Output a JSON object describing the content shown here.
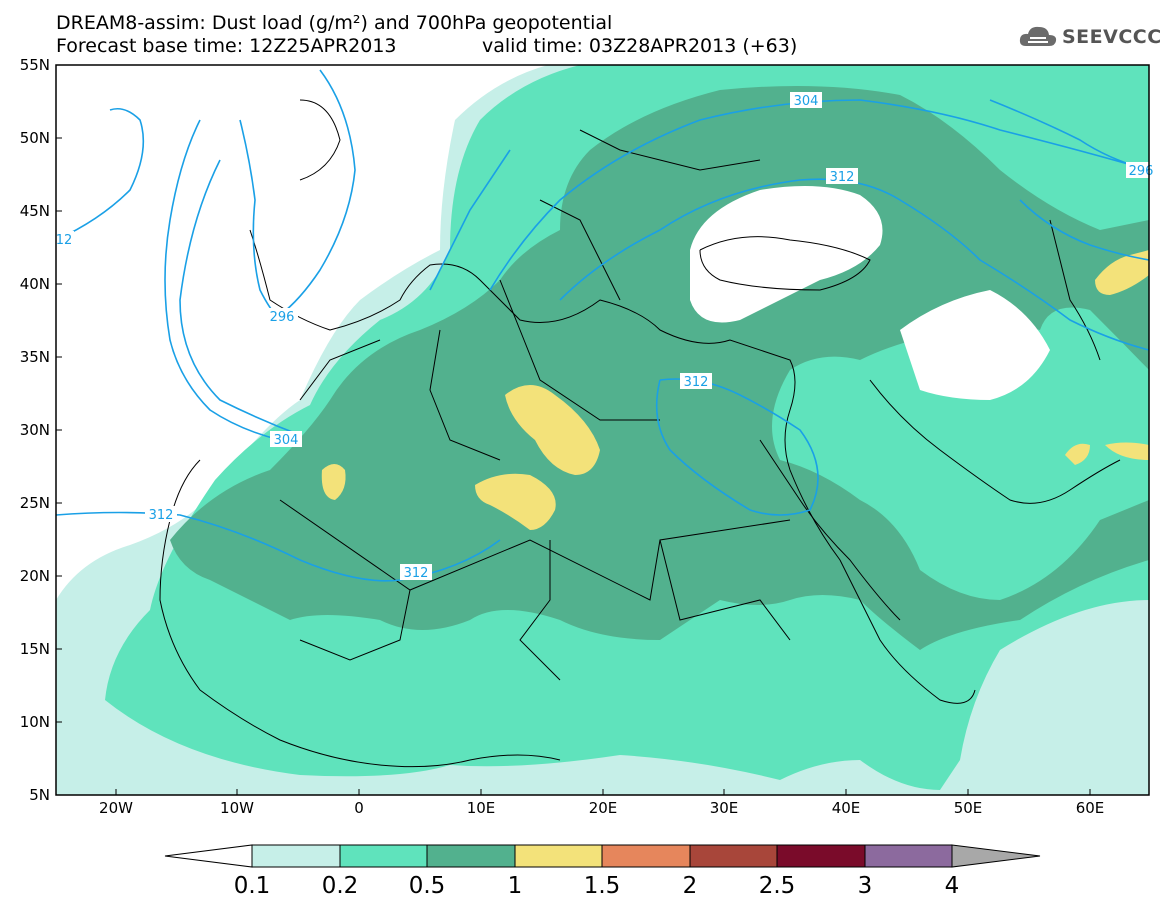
{
  "header": {
    "title_line1": "DREAM8-assim: Dust load (g/m²) and 700hPa geopotential",
    "base_time": "Forecast base time: 12Z25APR2013",
    "valid_time": "valid time: 03Z28APR2013 (+63)",
    "logo": "SEEVCCC",
    "logo_icon": "cloud-logo-icon"
  },
  "axes": {
    "lat_labels": [
      "55N",
      "50N",
      "45N",
      "40N",
      "35N",
      "30N",
      "25N",
      "20N",
      "15N",
      "10N",
      "5N"
    ],
    "lon_labels": [
      "20W",
      "10W",
      "0",
      "10E",
      "20E",
      "30E",
      "40E",
      "50E",
      "60E"
    ]
  },
  "contours": {
    "labels": [
      "304",
      "312",
      "296",
      "296",
      "312",
      "312",
      "304",
      "312",
      "312",
      "12"
    ]
  },
  "colorbar": {
    "ticks": [
      "0.1",
      "0.2",
      "0.5",
      "1",
      "1.5",
      "2",
      "2.5",
      "3",
      "4"
    ],
    "colors": {
      "c1": "#c6efe8",
      "c2": "#5fe3bc",
      "c3": "#52b18e",
      "c4": "#f3e27a",
      "c5": "#e6865c",
      "c6": "#a8463a",
      "c7": "#7a0b2a",
      "c8": "#8c6a9e",
      "over": "#a8a8a8",
      "under": "#ffffff",
      "contour": "#1aa0e6"
    }
  }
}
